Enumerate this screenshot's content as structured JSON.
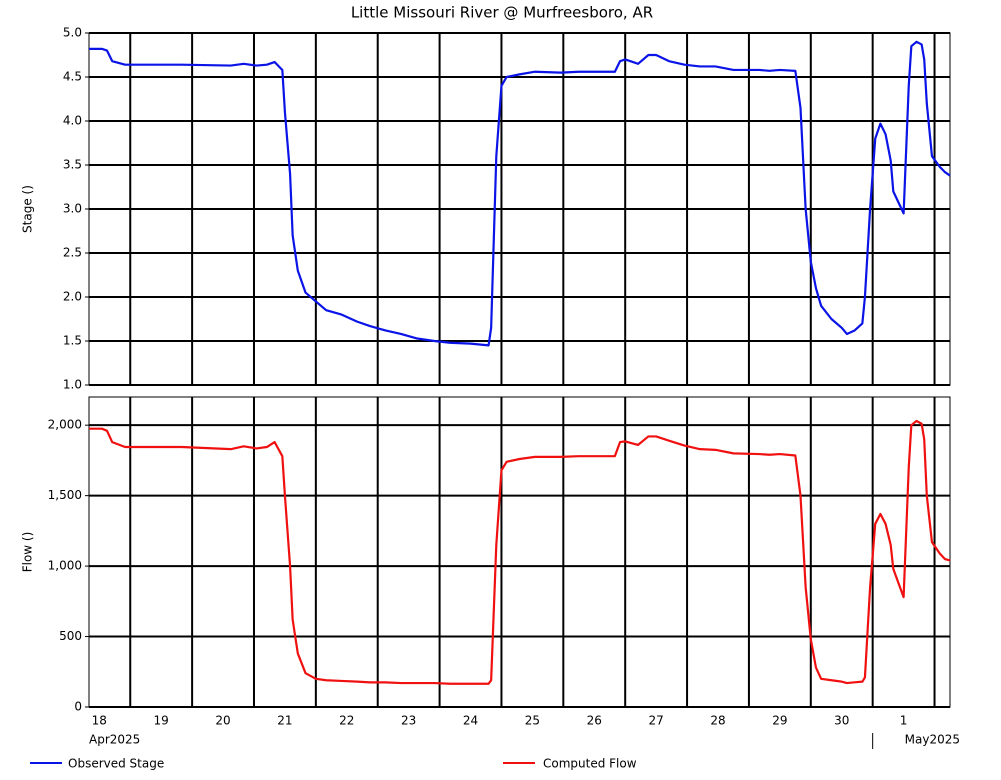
{
  "chart_data": [
    {
      "type": "line",
      "title": "Little Missouri River @ Murfreesboro, AR",
      "y_label": "Stage ()",
      "x": [
        "2025-04-18T08:00",
        "2025-04-18T13:00",
        "2025-04-18T15:00",
        "2025-04-18T17:00",
        "2025-04-18T22:00",
        "2025-04-19T20:00",
        "2025-04-20T15:00",
        "2025-04-20T20:00",
        "2025-04-21T01:00",
        "2025-04-21T05:00",
        "2025-04-21T08:00",
        "2025-04-21T11:00",
        "2025-04-21T12:00",
        "2025-04-21T14:00",
        "2025-04-21T15:00",
        "2025-04-21T17:00",
        "2025-04-21T20:00",
        "2025-04-22T00:00",
        "2025-04-22T04:00",
        "2025-04-22T10:00",
        "2025-04-22T16:00",
        "2025-04-22T21:00",
        "2025-04-23T03:00",
        "2025-04-23T09:00",
        "2025-04-23T15:00",
        "2025-04-23T22:00",
        "2025-04-24T04:00",
        "2025-04-24T12:00",
        "2025-04-24T19:00",
        "2025-04-24T20:00",
        "2025-04-24T22:00",
        "2025-04-25T00:00",
        "2025-04-25T02:00",
        "2025-04-25T07:00",
        "2025-04-25T13:00",
        "2025-04-25T23:00",
        "2025-04-26T06:00",
        "2025-04-26T20:00",
        "2025-04-26T22:00",
        "2025-04-27T00:00",
        "2025-04-27T05:00",
        "2025-04-27T09:00",
        "2025-04-27T12:00",
        "2025-04-27T17:00",
        "2025-04-27T23:00",
        "2025-04-28T05:00",
        "2025-04-28T11:00",
        "2025-04-28T18:00",
        "2025-04-29T04:00",
        "2025-04-29T08:00",
        "2025-04-29T12:00",
        "2025-04-29T18:00",
        "2025-04-29T20:00",
        "2025-04-29T22:00",
        "2025-04-30T00:00",
        "2025-04-30T02:00",
        "2025-04-30T04:00",
        "2025-04-30T08:00",
        "2025-04-30T12:00",
        "2025-04-30T14:00",
        "2025-04-30T17:00",
        "2025-04-30T20:00",
        "2025-04-30T21:00",
        "2025-04-30T23:00",
        "2025-05-01T01:00",
        "2025-05-01T03:00",
        "2025-05-01T05:00",
        "2025-05-01T07:00",
        "2025-05-01T08:00",
        "2025-05-01T12:00",
        "2025-05-01T14:00",
        "2025-05-01T15:00",
        "2025-05-01T17:00",
        "2025-05-01T19:00",
        "2025-05-01T20:00",
        "2025-05-01T21:00",
        "2025-05-01T23:00",
        "2025-05-02T02:00",
        "2025-05-02T04:00",
        "2025-05-02T06:00"
      ],
      "series": [
        {
          "name": "Observed Stage",
          "color": "#0a14e6",
          "values": [
            4.82,
            4.82,
            4.8,
            4.68,
            4.64,
            4.64,
            4.63,
            4.65,
            4.63,
            4.64,
            4.67,
            4.58,
            4.1,
            3.4,
            2.7,
            2.3,
            2.05,
            1.95,
            1.85,
            1.8,
            1.72,
            1.67,
            1.62,
            1.58,
            1.53,
            1.5,
            1.48,
            1.47,
            1.45,
            1.65,
            3.6,
            4.4,
            4.5,
            4.53,
            4.56,
            4.55,
            4.56,
            4.56,
            4.68,
            4.7,
            4.65,
            4.75,
            4.75,
            4.68,
            4.64,
            4.62,
            4.62,
            4.58,
            4.58,
            4.57,
            4.58,
            4.57,
            4.15,
            3.0,
            2.4,
            2.1,
            1.9,
            1.75,
            1.65,
            1.58,
            1.62,
            1.7,
            2.0,
            3.0,
            3.8,
            3.97,
            3.85,
            3.55,
            3.2,
            2.95,
            4.4,
            4.85,
            4.9,
            4.87,
            4.7,
            4.2,
            3.6,
            3.48,
            3.42,
            3.38
          ]
        }
      ],
      "xlim": [
        "2025-04-18T08:00",
        "2025-05-02T06:00"
      ],
      "xticks": [
        "2025-04-19",
        "2025-04-20",
        "2025-04-21",
        "2025-04-22",
        "2025-04-23",
        "2025-04-24",
        "2025-04-25",
        "2025-04-26",
        "2025-04-27",
        "2025-04-28",
        "2025-04-29",
        "2025-04-30",
        "2025-05-01",
        "2025-05-02"
      ],
      "ylim": [
        1,
        5
      ],
      "yticks": [
        {
          "value": 1,
          "label": "1.0"
        },
        1.5,
        {
          "value": 2,
          "label": "2.0"
        },
        2.5,
        {
          "value": 3,
          "label": "3.0"
        },
        3.5,
        {
          "value": 4,
          "label": "4.0"
        },
        4.5,
        {
          "value": 5,
          "label": "5.0"
        }
      ],
      "grid": true
    },
    {
      "type": "line",
      "y_label": "Flow ()",
      "x": [
        "2025-04-18T08:00",
        "2025-04-18T13:00",
        "2025-04-18T15:00",
        "2025-04-18T17:00",
        "2025-04-18T22:00",
        "2025-04-19T20:00",
        "2025-04-20T15:00",
        "2025-04-20T20:00",
        "2025-04-21T01:00",
        "2025-04-21T05:00",
        "2025-04-21T08:00",
        "2025-04-21T11:00",
        "2025-04-21T12:00",
        "2025-04-21T14:00",
        "2025-04-21T15:00",
        "2025-04-21T17:00",
        "2025-04-21T20:00",
        "2025-04-22T00:00",
        "2025-04-22T04:00",
        "2025-04-22T10:00",
        "2025-04-22T16:00",
        "2025-04-22T21:00",
        "2025-04-23T03:00",
        "2025-04-23T09:00",
        "2025-04-23T15:00",
        "2025-04-23T22:00",
        "2025-04-24T04:00",
        "2025-04-24T12:00",
        "2025-04-24T19:00",
        "2025-04-24T20:00",
        "2025-04-24T22:00",
        "2025-04-25T00:00",
        "2025-04-25T02:00",
        "2025-04-25T07:00",
        "2025-04-25T13:00",
        "2025-04-25T23:00",
        "2025-04-26T06:00",
        "2025-04-26T20:00",
        "2025-04-26T22:00",
        "2025-04-27T00:00",
        "2025-04-27T05:00",
        "2025-04-27T09:00",
        "2025-04-27T12:00",
        "2025-04-27T17:00",
        "2025-04-27T23:00",
        "2025-04-28T05:00",
        "2025-04-28T11:00",
        "2025-04-28T18:00",
        "2025-04-29T04:00",
        "2025-04-29T08:00",
        "2025-04-29T12:00",
        "2025-04-29T18:00",
        "2025-04-29T20:00",
        "2025-04-29T22:00",
        "2025-04-30T00:00",
        "2025-04-30T02:00",
        "2025-04-30T04:00",
        "2025-04-30T08:00",
        "2025-04-30T12:00",
        "2025-04-30T14:00",
        "2025-04-30T17:00",
        "2025-04-30T20:00",
        "2025-04-30T21:00",
        "2025-04-30T23:00",
        "2025-05-01T01:00",
        "2025-05-01T03:00",
        "2025-05-01T05:00",
        "2025-05-01T07:00",
        "2025-05-01T08:00",
        "2025-05-01T12:00",
        "2025-05-01T14:00",
        "2025-05-01T15:00",
        "2025-05-01T17:00",
        "2025-05-01T19:00",
        "2025-05-01T20:00",
        "2025-05-01T21:00",
        "2025-05-01T23:00",
        "2025-05-02T02:00",
        "2025-05-02T04:00",
        "2025-05-02T06:00"
      ],
      "series": [
        {
          "name": "Computed Flow",
          "color": "#f01010",
          "values": [
            1975,
            1975,
            1960,
            1880,
            1845,
            1845,
            1830,
            1850,
            1835,
            1845,
            1880,
            1780,
            1500,
            1000,
            620,
            380,
            240,
            200,
            190,
            185,
            180,
            175,
            175,
            170,
            170,
            170,
            165,
            165,
            165,
            190,
            1150,
            1680,
            1740,
            1760,
            1775,
            1775,
            1780,
            1780,
            1880,
            1885,
            1860,
            1920,
            1920,
            1890,
            1855,
            1830,
            1825,
            1800,
            1795,
            1790,
            1795,
            1785,
            1500,
            850,
            480,
            280,
            200,
            190,
            180,
            170,
            175,
            180,
            210,
            850,
            1300,
            1370,
            1300,
            1150,
            980,
            780,
            1700,
            2000,
            2030,
            2010,
            1900,
            1500,
            1170,
            1090,
            1050,
            1040
          ]
        }
      ],
      "xlim": [
        "2025-04-18T08:00",
        "2025-05-02T06:00"
      ],
      "xticks": [
        {
          "value": "2025-04-18",
          "label": "18"
        },
        {
          "value": "2025-04-19",
          "label": "19"
        },
        {
          "value": "2025-04-20",
          "label": "20"
        },
        {
          "value": "2025-04-21",
          "label": "21"
        },
        {
          "value": "2025-04-22",
          "label": "22"
        },
        {
          "value": "2025-04-23",
          "label": "23"
        },
        {
          "value": "2025-04-24",
          "label": "24"
        },
        {
          "value": "2025-04-25",
          "label": "25"
        },
        {
          "value": "2025-04-26",
          "label": "26"
        },
        {
          "value": "2025-04-27",
          "label": "27"
        },
        {
          "value": "2025-04-28",
          "label": "28"
        },
        {
          "value": "2025-04-29",
          "label": "29"
        },
        {
          "value": "2025-04-30",
          "label": "30"
        },
        {
          "value": "2025-05-01",
          "label": "1"
        },
        {
          "value": "2025-05-02",
          "label": null
        }
      ],
      "month_labels": [
        {
          "value": "2025-04-01",
          "label": "Apr2025"
        },
        {
          "value": "2025-05-01",
          "label": "May2025"
        }
      ],
      "ylim": [
        0,
        2200
      ],
      "yticks": [
        0,
        500,
        {
          "value": 1000,
          "label": "1,000"
        },
        {
          "value": 1500,
          "label": "1,500"
        },
        {
          "value": 2000,
          "label": "2,000"
        }
      ],
      "grid": true
    }
  ]
}
